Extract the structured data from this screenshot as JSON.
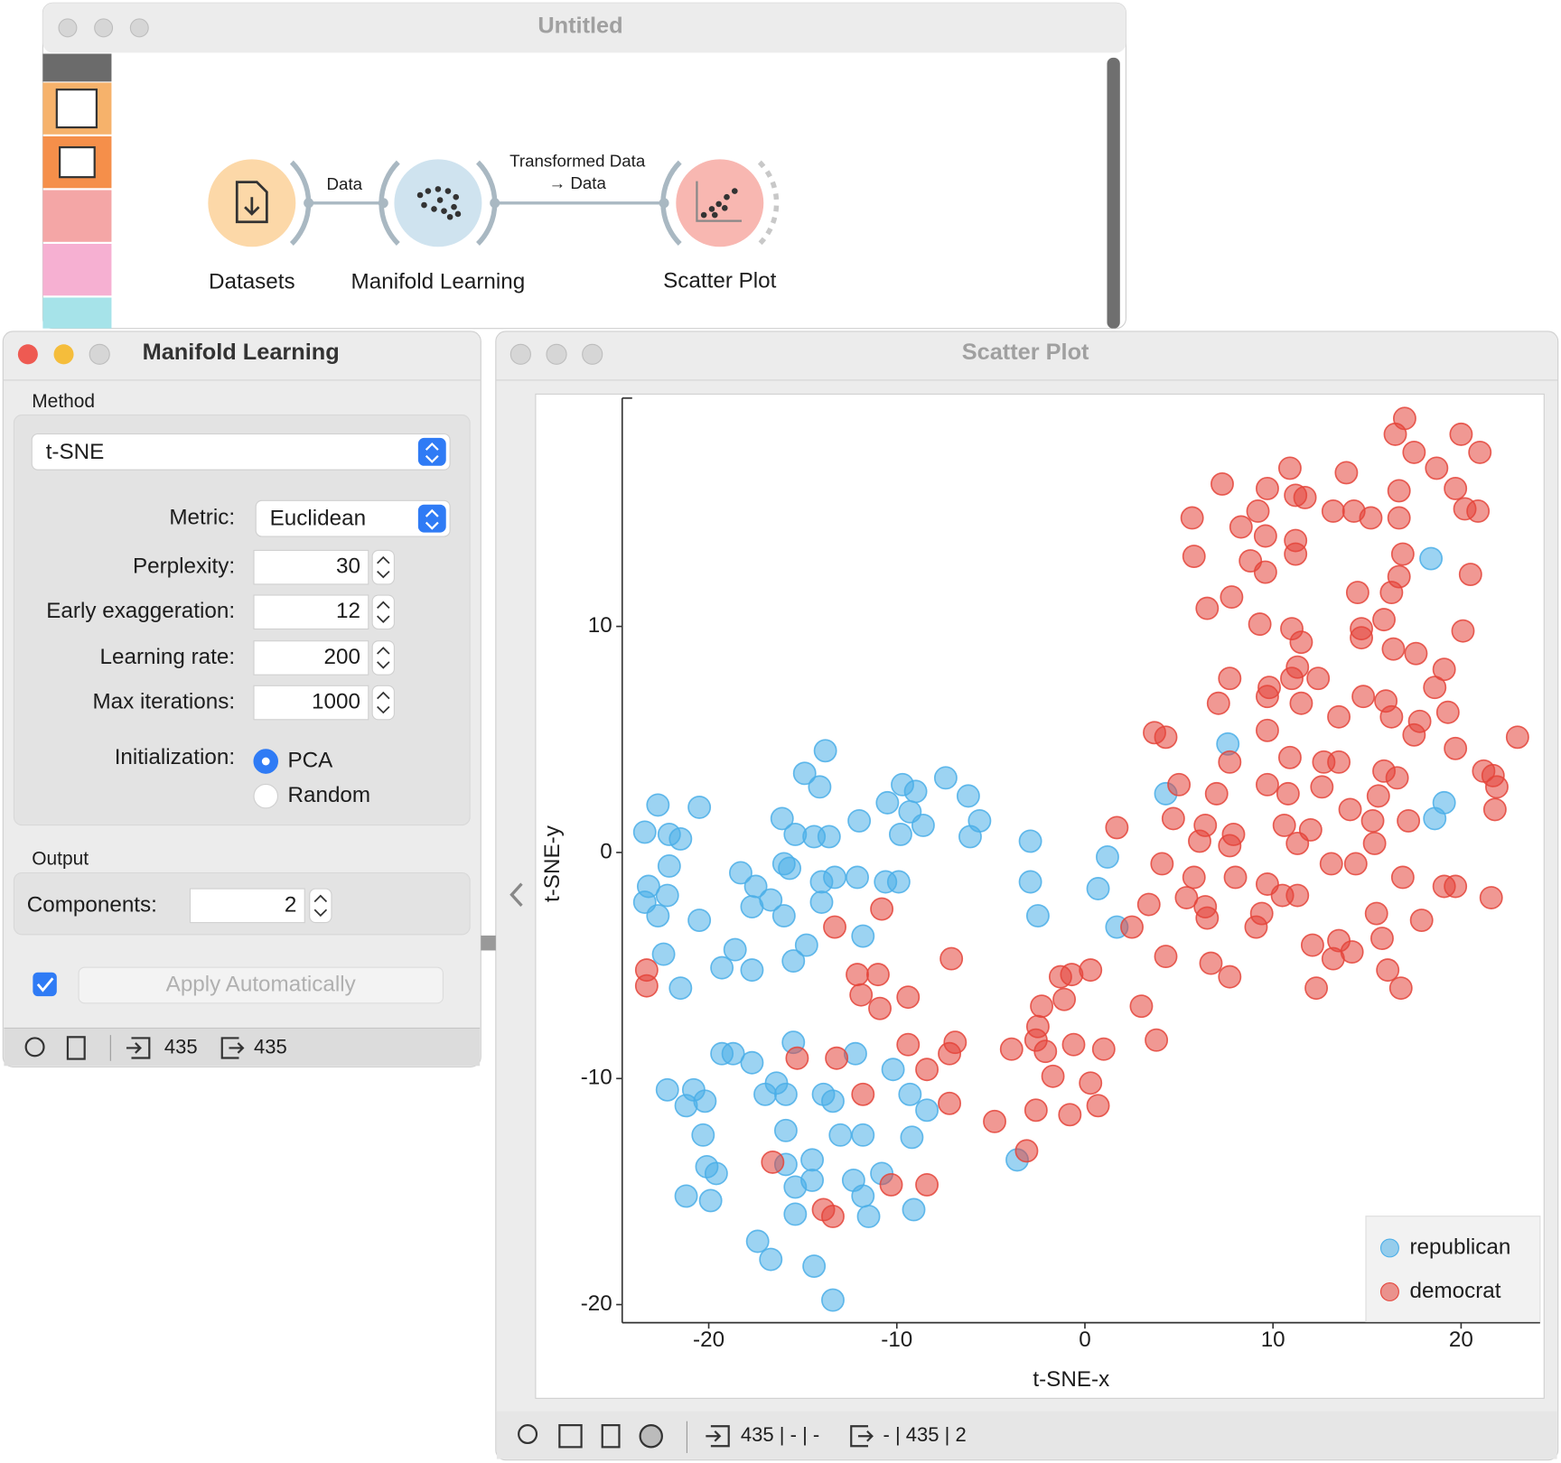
{
  "canvas_window": {
    "title": "Untitled",
    "widgets": [
      {
        "label": "Datasets"
      },
      {
        "label": "Manifold Learning"
      },
      {
        "label": "Scatter Plot"
      }
    ],
    "links": [
      {
        "label_lines": [
          "Data"
        ]
      },
      {
        "label_lines": [
          "Transformed Data",
          "→ Data"
        ]
      }
    ]
  },
  "manifold_window": {
    "title": "Manifold Learning",
    "method_label": "Method",
    "method": "t-SNE",
    "fields": [
      {
        "label": "Metric:",
        "value": "Euclidean"
      },
      {
        "label": "Perplexity:",
        "value": 30
      },
      {
        "label": "Early exaggeration:",
        "value": 12
      },
      {
        "label": "Learning rate:",
        "value": 200
      },
      {
        "label": "Max iterations:",
        "value": 1000
      }
    ],
    "initialization": {
      "label": "Initialization:",
      "options": [
        "PCA",
        "Random"
      ],
      "selected": "PCA"
    },
    "output_label": "Output",
    "components": {
      "label": "Components:",
      "value": 2
    },
    "apply": "Apply Automatically",
    "status": {
      "input": 435,
      "output": 435
    }
  },
  "scatter_window": {
    "title": "Scatter Plot",
    "status": {
      "input": "435 | - | -",
      "output": "- | 435 | 2"
    }
  },
  "chart_data": {
    "type": "scatter",
    "xlabel": "t-SNE-x",
    "ylabel": "t-SNE-y",
    "xlim": [
      -24.6,
      24.2
    ],
    "ylim": [
      -20.8,
      20.1
    ],
    "xticks": [
      -20,
      -10,
      0,
      10,
      20
    ],
    "yticks": [
      -20,
      -10,
      0,
      10
    ],
    "legend": "bottom-right",
    "series": [
      {
        "name": "republican",
        "color": "#4aaee8",
        "x": [
          -13.8,
          -14.9,
          -14.1,
          -22.7,
          -20.5,
          -23.4,
          -22.1,
          -21.5,
          -22.1,
          -23.2,
          -22.2,
          -23.4,
          -22.7,
          -20.5,
          -22.4,
          -21.5,
          -18.3,
          -17.5,
          -16.7,
          -17.7,
          -16.0,
          -18.6,
          -19.3,
          -17.7,
          -15.5,
          -14.8,
          -16.1,
          -15.4,
          -14.4,
          -13.6,
          -12.0,
          -16.0,
          -15.7,
          -14.0,
          -13.3,
          -12.1,
          -14.0,
          -10.6,
          -9.9,
          -11.8,
          -10.5,
          -9.7,
          -9.0,
          -9.3,
          -8.6,
          -9.8,
          -7.4,
          -6.2,
          -5.6,
          -6.1,
          -2.9,
          -2.9,
          -2.5,
          1.2,
          0.7,
          1.7,
          4.3,
          7.6,
          18.4,
          19.1,
          18.6,
          -19.3,
          -18.7,
          -17.7,
          -22.2,
          -20.8,
          -21.2,
          -20.2,
          -20.3,
          -17.0,
          -16.4,
          -15.9,
          -15.5,
          -13.9,
          -13.4,
          -12.2,
          -10.2,
          -9.3,
          -8.4,
          -15.9,
          -13.0,
          -11.8,
          -9.2,
          -20.1,
          -19.6,
          -21.2,
          -19.9,
          -15.9,
          -14.5,
          -15.4,
          -14.5,
          -12.3,
          -10.8,
          -11.8,
          -15.4,
          -11.5,
          -9.1,
          -17.4,
          -16.7,
          -14.4,
          -13.4,
          -3.6
        ],
        "y": [
          4.5,
          3.5,
          2.9,
          2.1,
          2.0,
          0.9,
          0.8,
          0.6,
          -0.6,
          -1.5,
          -1.9,
          -2.2,
          -2.8,
          -3.0,
          -4.5,
          -6.0,
          -0.9,
          -1.5,
          -2.1,
          -2.4,
          -2.8,
          -4.3,
          -5.1,
          -5.2,
          -4.8,
          -4.1,
          1.5,
          0.8,
          0.7,
          0.7,
          1.4,
          -0.5,
          -0.7,
          -1.3,
          -1.1,
          -1.1,
          -2.2,
          -1.3,
          -1.3,
          -3.7,
          2.2,
          3.0,
          2.7,
          1.8,
          1.2,
          0.8,
          3.3,
          2.5,
          1.4,
          0.7,
          0.5,
          -1.3,
          -2.8,
          -0.2,
          -1.6,
          -3.3,
          2.6,
          4.8,
          13.0,
          2.2,
          1.5,
          -8.9,
          -8.9,
          -9.3,
          -10.5,
          -10.5,
          -11.2,
          -11.0,
          -12.5,
          -10.7,
          -10.2,
          -10.7,
          -8.4,
          -10.7,
          -11.0,
          -8.9,
          -9.6,
          -10.7,
          -11.4,
          -12.3,
          -12.5,
          -12.5,
          -12.6,
          -13.9,
          -14.2,
          -15.2,
          -15.4,
          -13.8,
          -13.6,
          -14.8,
          -14.5,
          -14.5,
          -14.2,
          -15.2,
          -16.0,
          -16.1,
          -15.8,
          -17.2,
          -18.0,
          -18.3,
          -19.8,
          -13.6
        ]
      },
      {
        "name": "democrat",
        "color": "#e4443a",
        "x": [
          17.0,
          16.5,
          20.0,
          17.5,
          21.0,
          10.9,
          13.9,
          18.7,
          7.3,
          9.7,
          11.2,
          11.7,
          16.7,
          19.7,
          5.7,
          8.3,
          9.2,
          13.2,
          14.3,
          15.2,
          16.7,
          20.2,
          20.9,
          9.6,
          11.2,
          5.8,
          8.8,
          9.6,
          11.2,
          16.9,
          16.7,
          20.5,
          7.8,
          6.5,
          14.5,
          16.3,
          15.9,
          9.3,
          11.0,
          14.7,
          20.1,
          11.5,
          16.4,
          17.6,
          14.7,
          11.3,
          11.0,
          12.4,
          7.7,
          9.8,
          18.6,
          19.1,
          9.7,
          11.5,
          7.1,
          14.8,
          16.0,
          13.5,
          16.3,
          19.3,
          17.8,
          17.5,
          9.7,
          3.7,
          4.3,
          23.0,
          19.7,
          7.7,
          10.9,
          12.7,
          13.5,
          15.9,
          16.6,
          21.2,
          21.7,
          5.0,
          9.7,
          12.6,
          15.6,
          21.9,
          7.0,
          10.8,
          14.1,
          15.3,
          17.2,
          21.8,
          4.7,
          1.7,
          6.4,
          7.9,
          10.6,
          12.0,
          15.4,
          6.1,
          7.7,
          11.3,
          4.1,
          13.1,
          14.4,
          16.9,
          5.8,
          8.0,
          9.7,
          10.5,
          11.3,
          5.4,
          6.4,
          3.4,
          19.1,
          19.7,
          21.6,
          15.5,
          17.9,
          9.4,
          6.5,
          9.1,
          2.5,
          12.1,
          13.5,
          14.2,
          15.8,
          13.2,
          4.3,
          6.7,
          7.7,
          16.1,
          12.3,
          16.8,
          -1.3,
          -0.7,
          0.3,
          -1.1,
          -2.3,
          3.0,
          -2.5,
          -2.6,
          -3.9,
          -2.1,
          -0.6,
          1.0,
          3.8,
          -1.7,
          0.3,
          0.7,
          -2.6,
          -0.8,
          -4.8,
          -3.1,
          -23.3,
          -23.3,
          -13.3,
          -10.8,
          -7.1,
          -12.1,
          -11.0,
          -11.9,
          -9.4,
          -10.9,
          -15.3,
          -13.2,
          -9.4,
          -6.9,
          -7.2,
          -8.4,
          -11.8,
          -7.2,
          -16.6,
          -10.3,
          -8.4,
          -13.9,
          -13.4
        ],
        "y": [
          19.2,
          18.5,
          18.5,
          17.7,
          17.7,
          17.0,
          16.8,
          17.0,
          16.3,
          16.1,
          15.8,
          15.7,
          16.0,
          16.1,
          14.8,
          14.4,
          15.1,
          15.1,
          15.1,
          14.8,
          14.8,
          15.2,
          15.1,
          14.0,
          13.8,
          13.1,
          12.9,
          12.4,
          13.2,
          13.2,
          12.2,
          12.3,
          11.3,
          10.8,
          11.5,
          11.5,
          10.3,
          10.1,
          9.9,
          9.9,
          9.8,
          9.3,
          9.0,
          8.8,
          9.5,
          8.2,
          7.7,
          7.7,
          7.7,
          7.3,
          7.3,
          8.1,
          6.9,
          6.6,
          6.6,
          6.9,
          6.7,
          6.0,
          6.0,
          6.2,
          5.8,
          5.2,
          5.4,
          5.3,
          5.1,
          5.1,
          4.6,
          4.0,
          4.2,
          4.0,
          4.0,
          3.6,
          3.3,
          3.6,
          3.4,
          3.0,
          3.0,
          2.9,
          2.5,
          2.9,
          2.6,
          2.6,
          1.9,
          1.4,
          1.4,
          1.9,
          1.5,
          1.1,
          1.2,
          0.8,
          1.2,
          1.0,
          0.4,
          0.5,
          0.3,
          0.4,
          -0.5,
          -0.5,
          -0.5,
          -1.1,
          -1.1,
          -1.1,
          -1.4,
          -1.9,
          -1.9,
          -2.0,
          -2.4,
          -2.3,
          -1.5,
          -1.5,
          -2.0,
          -2.7,
          -3.0,
          -2.7,
          -2.9,
          -3.3,
          -3.3,
          -4.1,
          -3.9,
          -4.4,
          -3.8,
          -4.7,
          -4.6,
          -4.9,
          -5.5,
          -5.2,
          -6.0,
          -6.0,
          -5.5,
          -5.4,
          -5.2,
          -6.5,
          -6.8,
          -6.8,
          -7.7,
          -8.3,
          -8.7,
          -8.8,
          -8.5,
          -8.7,
          -8.3,
          -9.9,
          -10.2,
          -11.2,
          -11.4,
          -11.6,
          -11.9,
          -13.2,
          -5.2,
          -5.9,
          -3.3,
          -2.5,
          -4.7,
          -5.4,
          -5.4,
          -6.3,
          -6.4,
          -6.9,
          -9.1,
          -9.1,
          -8.5,
          -8.4,
          -8.9,
          -9.6,
          -10.7,
          -11.1,
          -13.7,
          -14.7,
          -14.7,
          -15.8,
          -16.1
        ]
      }
    ]
  }
}
